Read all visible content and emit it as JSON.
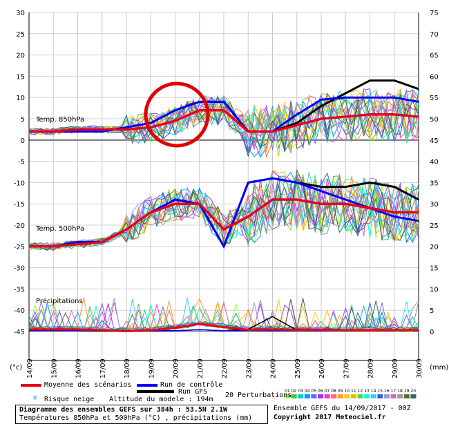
{
  "chart_data": {
    "type": "line",
    "y_left_ticks": [
      "30",
      "25",
      "20",
      "15",
      "10",
      "5",
      "0",
      "-5",
      "-10",
      "-15",
      "-20",
      "-25",
      "-30",
      "-35",
      "-40",
      "-45"
    ],
    "y_right_ticks": [
      "75",
      "70",
      "65",
      "60",
      "55",
      "50",
      "45",
      "40",
      "35",
      "30",
      "25",
      "20",
      "15",
      "10",
      "5",
      "0"
    ],
    "y_left_unit": "(°c)",
    "y_right_unit": "(mm)",
    "x_ticks": [
      "14/09",
      "15/09",
      "16/09",
      "17/09",
      "18/09",
      "19/09",
      "20/09",
      "21/09",
      "22/09",
      "23/09",
      "24/09",
      "25/09",
      "26/09",
      "27/09",
      "28/09",
      "29/09",
      "30/09"
    ],
    "panel_labels": {
      "t850": "Temp. 850hPa",
      "t500": "Temp. 500hPa",
      "precip": "Précipitations"
    },
    "ylim_left": [
      -45,
      30
    ],
    "ylim_right": [
      0,
      75
    ],
    "t850": {
      "mean": [
        2,
        2,
        2.5,
        2.5,
        2.5,
        3,
        4.5,
        7,
        7,
        2,
        2,
        3.5,
        5,
        5.5,
        6,
        6,
        5.5
      ],
      "control": [
        2,
        2,
        2,
        2,
        3,
        4,
        7,
        9,
        9,
        2,
        2,
        6,
        9.5,
        10,
        10,
        10,
        9
      ],
      "gfs": [
        2,
        2,
        2,
        2,
        3,
        4,
        7,
        9,
        9,
        2,
        2,
        4,
        8,
        11,
        14,
        14,
        12
      ]
    },
    "t500": {
      "mean": [
        -25,
        -25,
        -24.5,
        -24,
        -21,
        -17,
        -15,
        -15,
        -21,
        -18,
        -14,
        -14,
        -15,
        -15,
        -16,
        -17,
        -17
      ],
      "control": [
        -25,
        -25,
        -24,
        -24,
        -21,
        -17,
        -14,
        -15,
        -25,
        -10,
        -9,
        -10,
        -12,
        -14,
        -16,
        -18,
        -19
      ],
      "gfs": [
        -25,
        -25,
        -24,
        -24,
        -21,
        -17,
        -14,
        -15,
        -25,
        -10,
        -9,
        -10,
        -11,
        -11,
        -10,
        -11,
        -14
      ]
    },
    "precip": {
      "mean": [
        0.5,
        0.5,
        0.5,
        0.3,
        0.1,
        0.3,
        0.8,
        1.8,
        1,
        0.4,
        0.5,
        0.4,
        0.4,
        0.3,
        0.3,
        0.3,
        0.3
      ],
      "control": [
        0.2,
        0.2,
        0.2,
        0.2,
        0.1,
        0.1,
        0.2,
        0.4,
        0.2,
        0.2,
        0.2,
        0.2,
        0.2,
        0.2,
        0.2,
        0.2,
        0.2
      ],
      "gfs": [
        0.2,
        0.2,
        0.2,
        0.1,
        0.1,
        0.2,
        0.2,
        0.4,
        0.2,
        0.5,
        3.5,
        0.3,
        0.2,
        0.2,
        0.2,
        0.2,
        0.2
      ]
    },
    "series_colors": {
      "mean": "#e8001c",
      "control": "#0000ff",
      "gfs": "#000000"
    }
  },
  "legend": {
    "mean": "Moyenne des scénarios",
    "control": "Run de contrôle",
    "gfs": "Run GFS",
    "perturbations": "20 Perturbations",
    "snow": "Risque neige",
    "altitude": "Altitude du modele : 194m",
    "pert_numbers": [
      "01",
      "02",
      "03",
      "04",
      "05",
      "06",
      "07",
      "08",
      "09",
      "10",
      "11",
      "12",
      "13",
      "14",
      "15",
      "16",
      "17",
      "18",
      "19",
      "20"
    ],
    "pert_colors": [
      "#99ff33",
      "#33cc33",
      "#00cccc",
      "#0099ff",
      "#6666ff",
      "#9933ff",
      "#ff33cc",
      "#ff6666",
      "#ff9933",
      "#ffcc00",
      "#cccc00",
      "#66cc66",
      "#00ffcc",
      "#33ccff",
      "#3366cc",
      "#9999cc",
      "#cc66cc",
      "#999999",
      "#666633",
      "#336666"
    ]
  },
  "footer": {
    "title": "Diagramme des ensembles GEFS sur 384h : 53.5N 2.1W",
    "subtitle": "Températures 850hPa et 500hPa (°C) , précipitations (mm)",
    "run": "Ensemble GEFS du 14/09/2017 - 00Z",
    "copyright": "Copyright 2017 Meteociel.fr"
  },
  "annotation": {
    "circle_color": "#e00000"
  }
}
